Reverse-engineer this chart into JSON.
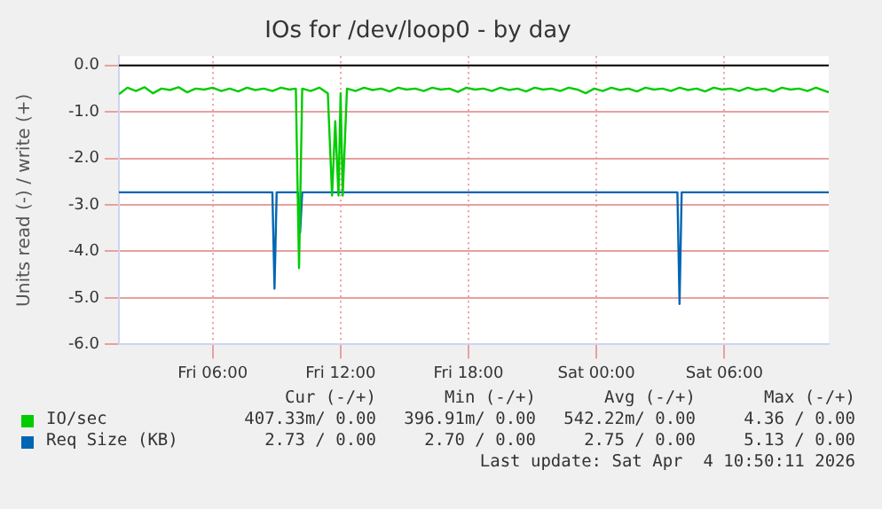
{
  "chart_data": {
    "type": "line",
    "title": "IOs for /dev/loop0 - by day",
    "ylabel": "Units read (-) / write (+)",
    "xlim": [
      "2026-04-03T01:36",
      "2026-04-04T10:54"
    ],
    "xticks": [
      {
        "value": "2026-04-03T06:00",
        "label": "Fri 06:00"
      },
      {
        "value": "2026-04-03T12:00",
        "label": "Fri 12:00"
      },
      {
        "value": "2026-04-03T18:00",
        "label": "Fri 18:00"
      },
      {
        "value": "2026-04-04T00:00",
        "label": "Sat 00:00"
      },
      {
        "value": "2026-04-04T06:00",
        "label": "Sat 06:00"
      }
    ],
    "ylim": [
      -6,
      0.2
    ],
    "yticks": [
      {
        "value": 0,
        "label": "0.0"
      },
      {
        "value": -1,
        "label": "-1.0"
      },
      {
        "value": -2,
        "label": "-2.0"
      },
      {
        "value": -3,
        "label": "-3.0"
      },
      {
        "value": -4,
        "label": "-4.0"
      },
      {
        "value": -5,
        "label": "-5.0"
      },
      {
        "value": -6,
        "label": "-6.0"
      }
    ],
    "grid": true,
    "legend": "bottom",
    "marker": "none",
    "line_style": "solid",
    "ref_lines": [
      {
        "axis": "y",
        "value": 0,
        "color": "#000000"
      }
    ],
    "series": [
      {
        "name": "IO/sec",
        "color": "#00cc00",
        "x": [
          "2026-04-03T01:36",
          "2026-04-03T02:00",
          "2026-04-03T02:24",
          "2026-04-03T02:48",
          "2026-04-03T03:12",
          "2026-04-03T03:36",
          "2026-04-03T04:00",
          "2026-04-03T04:24",
          "2026-04-03T04:48",
          "2026-04-03T05:12",
          "2026-04-03T05:36",
          "2026-04-03T06:00",
          "2026-04-03T06:24",
          "2026-04-03T06:48",
          "2026-04-03T07:12",
          "2026-04-03T07:36",
          "2026-04-03T08:00",
          "2026-04-03T08:24",
          "2026-04-03T08:48",
          "2026-04-03T09:12",
          "2026-04-03T09:36",
          "2026-04-03T09:54",
          "2026-04-03T10:03",
          "2026-04-03T10:12",
          "2026-04-03T10:36",
          "2026-04-03T11:00",
          "2026-04-03T11:24",
          "2026-04-03T11:36",
          "2026-04-03T11:45",
          "2026-04-03T11:54",
          "2026-04-03T12:00",
          "2026-04-03T12:06",
          "2026-04-03T12:18",
          "2026-04-03T12:42",
          "2026-04-03T13:06",
          "2026-04-03T13:30",
          "2026-04-03T13:54",
          "2026-04-03T14:18",
          "2026-04-03T14:42",
          "2026-04-03T15:06",
          "2026-04-03T15:30",
          "2026-04-03T15:54",
          "2026-04-03T16:18",
          "2026-04-03T16:42",
          "2026-04-03T17:06",
          "2026-04-03T17:30",
          "2026-04-03T17:54",
          "2026-04-03T18:18",
          "2026-04-03T18:42",
          "2026-04-03T19:06",
          "2026-04-03T19:30",
          "2026-04-03T19:54",
          "2026-04-03T20:18",
          "2026-04-03T20:42",
          "2026-04-03T21:06",
          "2026-04-03T21:30",
          "2026-04-03T21:54",
          "2026-04-03T22:18",
          "2026-04-03T22:42",
          "2026-04-03T23:06",
          "2026-04-03T23:30",
          "2026-04-03T23:54",
          "2026-04-04T00:18",
          "2026-04-04T00:42",
          "2026-04-04T01:06",
          "2026-04-04T01:30",
          "2026-04-04T01:54",
          "2026-04-04T02:18",
          "2026-04-04T02:42",
          "2026-04-04T03:06",
          "2026-04-04T03:30",
          "2026-04-04T03:54",
          "2026-04-04T04:18",
          "2026-04-04T04:42",
          "2026-04-04T05:06",
          "2026-04-04T05:30",
          "2026-04-04T05:54",
          "2026-04-04T06:18",
          "2026-04-04T06:42",
          "2026-04-04T07:06",
          "2026-04-04T07:30",
          "2026-04-04T07:54",
          "2026-04-04T08:18",
          "2026-04-04T08:42",
          "2026-04-04T09:06",
          "2026-04-04T09:30",
          "2026-04-04T09:54",
          "2026-04-04T10:18",
          "2026-04-04T10:54"
        ],
        "values": [
          -0.62,
          -0.48,
          -0.55,
          -0.47,
          -0.6,
          -0.5,
          -0.53,
          -0.47,
          -0.58,
          -0.5,
          -0.52,
          -0.48,
          -0.55,
          -0.5,
          -0.56,
          -0.48,
          -0.53,
          -0.5,
          -0.55,
          -0.48,
          -0.52,
          -0.5,
          -4.36,
          -0.5,
          -0.55,
          -0.48,
          -0.6,
          -2.8,
          -1.2,
          -2.8,
          -0.6,
          -2.8,
          -0.5,
          -0.55,
          -0.48,
          -0.53,
          -0.5,
          -0.56,
          -0.48,
          -0.52,
          -0.5,
          -0.55,
          -0.48,
          -0.52,
          -0.5,
          -0.57,
          -0.48,
          -0.52,
          -0.5,
          -0.55,
          -0.48,
          -0.53,
          -0.5,
          -0.56,
          -0.48,
          -0.52,
          -0.5,
          -0.55,
          -0.48,
          -0.52,
          -0.6,
          -0.5,
          -0.55,
          -0.48,
          -0.53,
          -0.5,
          -0.56,
          -0.48,
          -0.52,
          -0.5,
          -0.55,
          -0.48,
          -0.53,
          -0.5,
          -0.56,
          -0.48,
          -0.52,
          -0.5,
          -0.55,
          -0.48,
          -0.53,
          -0.5,
          -0.56,
          -0.48,
          -0.52,
          -0.5,
          -0.55,
          -0.48,
          -0.58
        ]
      },
      {
        "name": "Req Size (KB)",
        "color": "#0066b3",
        "x": [
          "2026-04-03T01:36",
          "2026-04-03T08:48",
          "2026-04-03T08:54",
          "2026-04-03T09:00",
          "2026-04-03T10:00",
          "2026-04-03T10:06",
          "2026-04-03T10:12",
          "2026-04-04T03:48",
          "2026-04-04T03:54",
          "2026-04-04T04:00",
          "2026-04-04T10:54"
        ],
        "values": [
          -2.73,
          -2.73,
          -4.8,
          -2.73,
          -2.73,
          -3.6,
          -2.73,
          -2.73,
          -5.13,
          -2.73,
          -2.73
        ]
      }
    ],
    "annotations": [
      "Cur (-/+)",
      "Min (-/+)",
      "Avg (-/+)",
      "Max (-/+)",
      "407.33m/ 0.00",
      "396.91m/ 0.00",
      "542.22m/ 0.00",
      "4.36 / 0.00",
      "2.73 / 0.00",
      "2.70 / 0.00",
      "2.75 / 0.00",
      "5.13 / 0.00",
      "Last update: Sat Apr  4 10:50:11 2026"
    ]
  }
}
